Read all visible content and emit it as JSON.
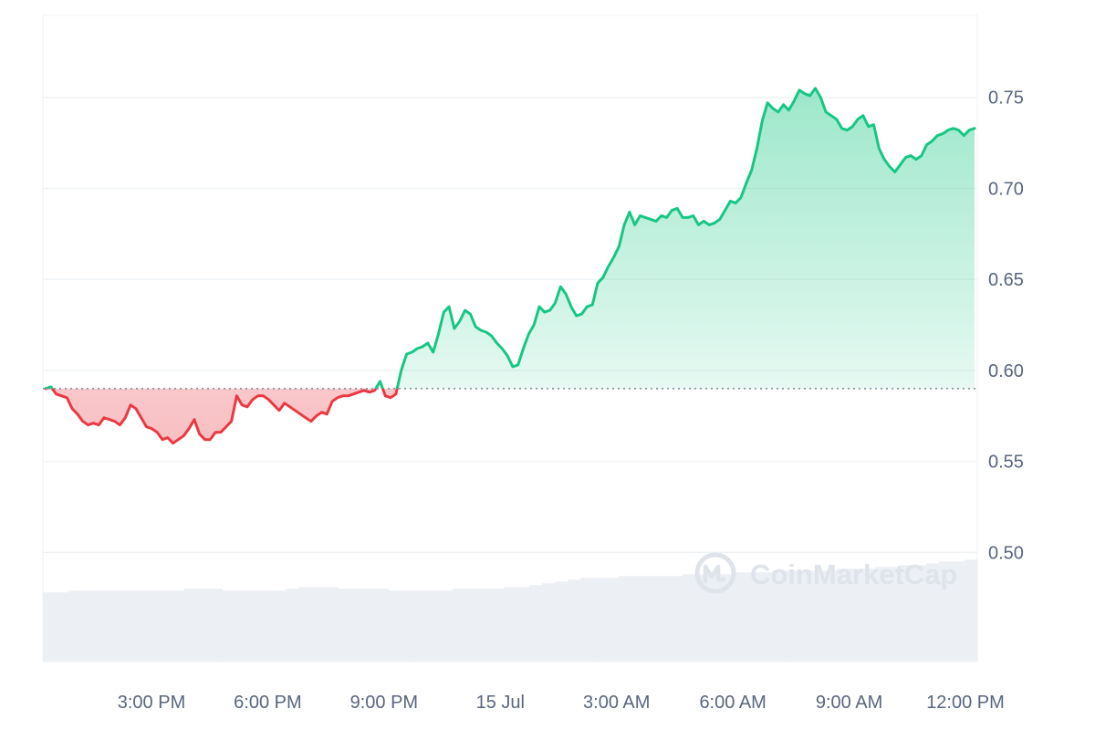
{
  "chart_data": {
    "type": "area",
    "title": "",
    "xlabel": "",
    "ylabel": "",
    "ylim": [
      0.44,
      0.795
    ],
    "x_range": [
      "12:00 PM",
      "12:10 PM"
    ],
    "x_ticks": [
      "3:00 PM",
      "6:00 PM",
      "9:00 PM",
      "15 Jul",
      "3:00 AM",
      "6:00 AM",
      "9:00 AM",
      "12:00 PM"
    ],
    "y_ticks": [
      0.5,
      0.55,
      0.6,
      0.65,
      0.7,
      0.75
    ],
    "y_tick_labels": [
      "0.50",
      "0.55",
      "0.60",
      "0.65",
      "0.70",
      "0.75"
    ],
    "baseline": 0.59,
    "grid": true,
    "colors": {
      "up": "#16c784",
      "down": "#ea3943",
      "grid": "#eff2f5",
      "volume": "#eceff4",
      "text": "#58667e",
      "baseline": "#7c8696"
    },
    "series": [
      {
        "name": "",
        "values": [
          0.59,
          0.591,
          0.587,
          0.586,
          0.585,
          0.579,
          0.576,
          0.572,
          0.57,
          0.571,
          0.57,
          0.574,
          0.573,
          0.572,
          0.57,
          0.574,
          0.581,
          0.579,
          0.574,
          0.569,
          0.568,
          0.566,
          0.562,
          0.563,
          0.56,
          0.562,
          0.564,
          0.568,
          0.573,
          0.565,
          0.562,
          0.562,
          0.566,
          0.566,
          0.569,
          0.572,
          0.586,
          0.581,
          0.58,
          0.584,
          0.586,
          0.586,
          0.584,
          0.581,
          0.578,
          0.582,
          0.58,
          0.578,
          0.576,
          0.574,
          0.572,
          0.575,
          0.577,
          0.576,
          0.583,
          0.585,
          0.586,
          0.586,
          0.587,
          0.588,
          0.589,
          0.588,
          0.589,
          0.594,
          0.586,
          0.585,
          0.587,
          0.6,
          0.609,
          0.61,
          0.612,
          0.613,
          0.615,
          0.61,
          0.62,
          0.632,
          0.635,
          0.623,
          0.627,
          0.633,
          0.631,
          0.624,
          0.622,
          0.621,
          0.619,
          0.615,
          0.612,
          0.608,
          0.602,
          0.603,
          0.612,
          0.62,
          0.625,
          0.635,
          0.632,
          0.633,
          0.637,
          0.646,
          0.642,
          0.635,
          0.63,
          0.631,
          0.635,
          0.636,
          0.648,
          0.651,
          0.657,
          0.662,
          0.668,
          0.68,
          0.687,
          0.68,
          0.685,
          0.684,
          0.683,
          0.682,
          0.685,
          0.684,
          0.688,
          0.689,
          0.684,
          0.684,
          0.685,
          0.68,
          0.682,
          0.68,
          0.681,
          0.683,
          0.688,
          0.693,
          0.692,
          0.695,
          0.703,
          0.71,
          0.722,
          0.737,
          0.747,
          0.744,
          0.742,
          0.746,
          0.743,
          0.748,
          0.754,
          0.752,
          0.751,
          0.755,
          0.75,
          0.742,
          0.74,
          0.738,
          0.733,
          0.732,
          0.734,
          0.738,
          0.74,
          0.734,
          0.735,
          0.722,
          0.716,
          0.712,
          0.709,
          0.713,
          0.717,
          0.718,
          0.716,
          0.718,
          0.724,
          0.726,
          0.729,
          0.73,
          0.732,
          0.733,
          0.732,
          0.729,
          0.732,
          0.733
        ]
      }
    ],
    "volume_values": [
      0.478,
      0.478,
      0.479,
      0.479,
      0.479,
      0.479,
      0.479,
      0.479,
      0.479,
      0.479,
      0.479,
      0.48,
      0.48,
      0.48,
      0.479,
      0.479,
      0.479,
      0.479,
      0.479,
      0.48,
      0.481,
      0.481,
      0.481,
      0.48,
      0.48,
      0.48,
      0.48,
      0.479,
      0.479,
      0.479,
      0.479,
      0.479,
      0.48,
      0.48,
      0.48,
      0.48,
      0.481,
      0.481,
      0.482,
      0.483,
      0.484,
      0.485,
      0.486,
      0.486,
      0.486,
      0.487,
      0.487,
      0.487,
      0.487,
      0.487,
      0.488,
      0.488,
      0.488,
      0.488,
      0.489,
      0.489,
      0.489,
      0.49,
      0.49,
      0.49,
      0.49,
      0.49,
      0.491,
      0.491,
      0.491,
      0.492,
      0.492,
      0.493,
      0.493,
      0.494,
      0.495,
      0.495,
      0.496
    ]
  },
  "watermark": {
    "text": "CoinMarketCap"
  }
}
